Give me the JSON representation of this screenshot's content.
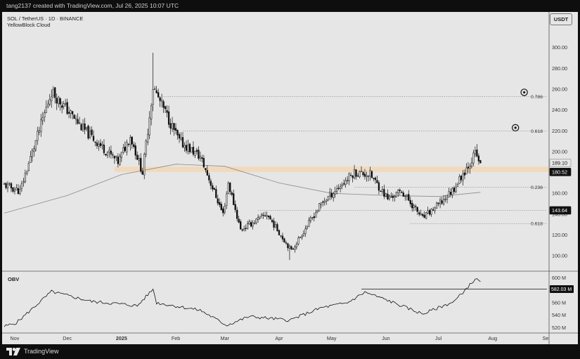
{
  "header": {
    "created_text": "tang2137 created with TradingView.com, Jul 26, 2025 10:07 UTC"
  },
  "footer": {
    "brand": "TradingView"
  },
  "legend": {
    "symbol_line": "SOL / TetherUS · 1D · BINANCE",
    "indicator": "YellowBlock Cloud"
  },
  "currency_button": "USDT",
  "obv_panel": {
    "label": "OBV"
  },
  "colors": {
    "background": "#e6e6e6",
    "frame": "#0e0e0e",
    "candle": "#111111",
    "moving_average": "#8a8a8a",
    "zone": "#f1d9bd",
    "obv_line": "#111111"
  },
  "chart_data": [
    {
      "type": "candlestick",
      "title": "SOL / TetherUS · 1D · BINANCE",
      "indicator": "YellowBlock Cloud",
      "x_ticks": [
        "Nov",
        "Dec",
        "2025",
        "Feb",
        "Mar",
        "Apr",
        "May",
        "Jun",
        "Jul",
        "Aug",
        "Se"
      ],
      "y_ticks": [
        100,
        120,
        140,
        160,
        180,
        200,
        220,
        240,
        260,
        280,
        300
      ],
      "y_tick_labels": [
        "100.00",
        "120.00",
        "140.00",
        "160.00",
        "180.00",
        "200.00",
        "220.00",
        "240.00",
        "260.00",
        "280.00",
        "300.00"
      ],
      "ylim": [
        92,
        318
      ],
      "grid": false,
      "trend_anchors": [
        {
          "date": "2024-10-26",
          "price": 168
        },
        {
          "date": "2024-11-04",
          "price": 162
        },
        {
          "date": "2024-11-22",
          "price": 258
        },
        {
          "date": "2024-12-10",
          "price": 222
        },
        {
          "date": "2024-12-30",
          "price": 190
        },
        {
          "date": "2025-01-06",
          "price": 215
        },
        {
          "date": "2025-01-13",
          "price": 180
        },
        {
          "date": "2025-01-19",
          "price": 262
        },
        {
          "date": "2025-02-03",
          "price": 210
        },
        {
          "date": "2025-02-15",
          "price": 195
        },
        {
          "date": "2025-02-28",
          "price": 140
        },
        {
          "date": "2025-03-03",
          "price": 170
        },
        {
          "date": "2025-03-10",
          "price": 125
        },
        {
          "date": "2025-03-25",
          "price": 140
        },
        {
          "date": "2025-04-08",
          "price": 105
        },
        {
          "date": "2025-04-25",
          "price": 150
        },
        {
          "date": "2025-05-14",
          "price": 180
        },
        {
          "date": "2025-05-23",
          "price": 178
        },
        {
          "date": "2025-06-02",
          "price": 155
        },
        {
          "date": "2025-06-10",
          "price": 162
        },
        {
          "date": "2025-06-22",
          "price": 136
        },
        {
          "date": "2025-07-03",
          "price": 152
        },
        {
          "date": "2025-07-10",
          "price": 165
        },
        {
          "date": "2025-07-22",
          "price": 198
        },
        {
          "date": "2025-07-25",
          "price": 189.1
        }
      ],
      "moving_average": [
        {
          "date": "2024-10-26",
          "price": 141
        },
        {
          "date": "2024-12-01",
          "price": 158
        },
        {
          "date": "2025-01-01",
          "price": 178
        },
        {
          "date": "2025-02-01",
          "price": 188
        },
        {
          "date": "2025-03-01",
          "price": 186
        },
        {
          "date": "2025-04-01",
          "price": 170
        },
        {
          "date": "2025-05-01",
          "price": 160
        },
        {
          "date": "2025-06-01",
          "price": 158
        },
        {
          "date": "2025-07-01",
          "price": 157
        },
        {
          "date": "2025-07-25",
          "price": 161
        }
      ],
      "extremes": [
        {
          "date": "2025-01-19",
          "high": 295
        },
        {
          "date": "2025-04-07",
          "low": 96
        }
      ],
      "support_zone": {
        "from": 180.5,
        "to": 185.5,
        "start_date": "2024-12-28"
      },
      "levels": [
        {
          "label": "0.786",
          "price": 253,
          "start_date": "2025-01-25"
        },
        {
          "label": "0.618",
          "price": 220,
          "start_date": "2025-02-05"
        },
        {
          "label": "0.236",
          "price": 166,
          "start_date": "2025-05-14"
        },
        {
          "label": "",
          "price": 143.64,
          "start_date": "2025-03-20"
        },
        {
          "label": "0.618",
          "price": 131,
          "start_date": "2025-06-15"
        }
      ],
      "targets": [
        {
          "date": "2025-08-19",
          "price": 257
        },
        {
          "date": "2025-08-14",
          "price": 223
        }
      ],
      "price_labels": [
        {
          "text": "189.10",
          "price": 189.1,
          "style": "light"
        },
        {
          "text": "180.52",
          "price": 180.52,
          "style": "dark"
        },
        {
          "text": "143.64",
          "price": 143.64,
          "style": "dark"
        }
      ],
      "last_close": 189.1
    },
    {
      "type": "line",
      "title": "OBV",
      "y_ticks": [
        520,
        540,
        560,
        580,
        600
      ],
      "y_tick_labels": [
        "520 M",
        "540 M",
        "560 M",
        "580 M",
        "600 M"
      ],
      "unit": "M",
      "ylim": [
        516,
        604
      ],
      "anchors": [
        {
          "date": "2024-10-26",
          "value": 522
        },
        {
          "date": "2024-11-02",
          "value": 528
        },
        {
          "date": "2024-11-22",
          "value": 578
        },
        {
          "date": "2024-12-15",
          "value": 562
        },
        {
          "date": "2025-01-01",
          "value": 558
        },
        {
          "date": "2025-01-10",
          "value": 555
        },
        {
          "date": "2025-01-19",
          "value": 582
        },
        {
          "date": "2025-01-21",
          "value": 560
        },
        {
          "date": "2025-02-15",
          "value": 548
        },
        {
          "date": "2025-03-02",
          "value": 524
        },
        {
          "date": "2025-03-15",
          "value": 538
        },
        {
          "date": "2025-04-07",
          "value": 532
        },
        {
          "date": "2025-04-25",
          "value": 552
        },
        {
          "date": "2025-05-10",
          "value": 560
        },
        {
          "date": "2025-05-20",
          "value": 577
        },
        {
          "date": "2025-06-01",
          "value": 565
        },
        {
          "date": "2025-06-22",
          "value": 542
        },
        {
          "date": "2025-07-10",
          "value": 562
        },
        {
          "date": "2025-07-22",
          "value": 598
        },
        {
          "date": "2025-07-25",
          "value": 594
        }
      ],
      "reference_line": {
        "value": 582.03,
        "start_date": "2025-05-18"
      },
      "value_label": "582.03 M",
      "x_ticks": [
        "Nov",
        "Dec",
        "2025",
        "Feb",
        "Mar",
        "Apr",
        "May",
        "Jun",
        "Jul",
        "Aug",
        "Se"
      ]
    }
  ]
}
